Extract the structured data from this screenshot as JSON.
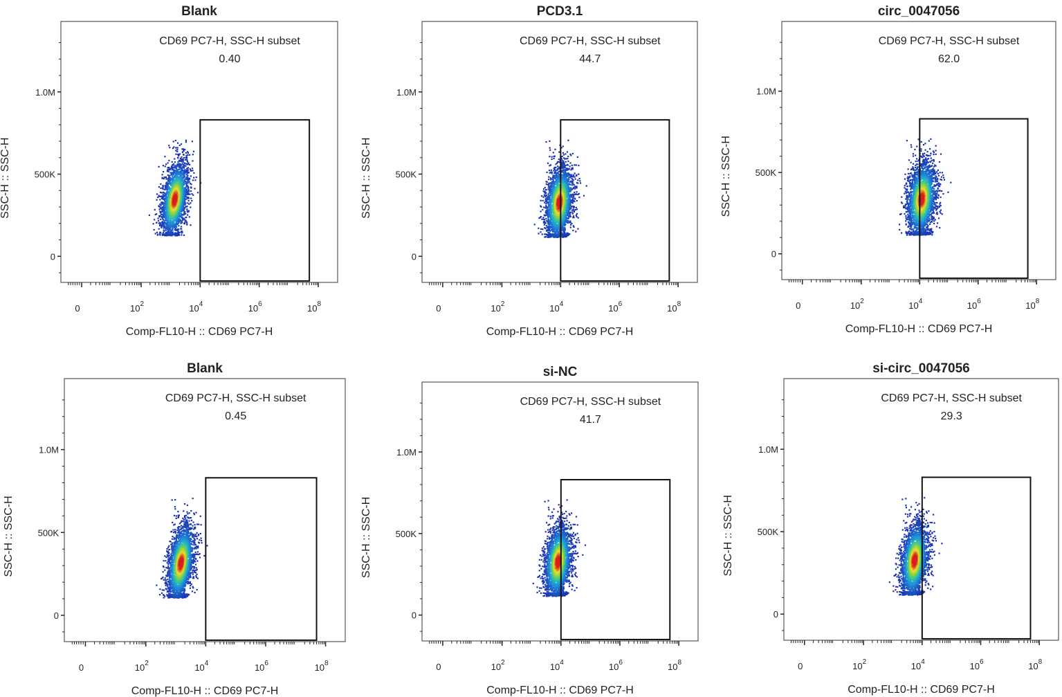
{
  "colors": {
    "density_low": "#1a2fb0",
    "density_mid": "#29c3c9",
    "density_high": "#e8e030",
    "density_peak": "#d81e1e",
    "axis": "#222222",
    "gate": "#111111"
  },
  "chart_data": [
    {
      "type": "scatter",
      "title": "Blank",
      "xlabel": "Comp-FL10-H :: CD69 PC7-H",
      "ylabel": "SSC-H :: SSC-H",
      "x_scale": "log",
      "x_ticks": [
        {
          "value": 0,
          "label": "0"
        },
        {
          "value": 100,
          "label": "10",
          "exp": "2"
        },
        {
          "value": 10000,
          "label": "10",
          "exp": "4"
        },
        {
          "value": 1000000,
          "label": "10",
          "exp": "6"
        },
        {
          "value": 100000000,
          "label": "10",
          "exp": "8"
        }
      ],
      "y_ticks": [
        {
          "value": 0,
          "label": "0"
        },
        {
          "value": 500000,
          "label": "500K"
        },
        {
          "value": 1000000,
          "label": "1.0M"
        }
      ],
      "gate": {
        "name": "CD69 PC7-H, SSC-H subset",
        "percent": "0.40",
        "x_range": [
          10000,
          50000000
        ],
        "y_range": [
          -150000,
          830000
        ]
      },
      "population": {
        "x_center": 1300,
        "x_spread_decades": 0.55,
        "y_center": 350000,
        "y_range": [
          130000,
          710000
        ],
        "skew": 0.45
      }
    },
    {
      "type": "scatter",
      "title": "PCD3.1",
      "xlabel": "Comp-FL10-H :: CD69 PC7-H",
      "ylabel": "SSC-H :: SSC-H",
      "x_scale": "log",
      "x_ticks": [
        {
          "value": 0,
          "label": "0"
        },
        {
          "value": 100,
          "label": "10",
          "exp": "2"
        },
        {
          "value": 10000,
          "label": "10",
          "exp": "4"
        },
        {
          "value": 1000000,
          "label": "10",
          "exp": "6"
        },
        {
          "value": 100000000,
          "label": "10",
          "exp": "8"
        }
      ],
      "y_ticks": [
        {
          "value": 0,
          "label": "0"
        },
        {
          "value": 500000,
          "label": "500K"
        },
        {
          "value": 1000000,
          "label": "1.0M"
        }
      ],
      "gate": {
        "name": "CD69 PC7-H, SSC-H subset",
        "percent": "44.7",
        "x_range": [
          10000,
          50000000
        ],
        "y_range": [
          -150000,
          830000
        ]
      },
      "population": {
        "x_center": 8500,
        "x_spread_decades": 0.6,
        "y_center": 330000,
        "y_range": [
          120000,
          710000
        ],
        "skew": 0.3
      }
    },
    {
      "type": "scatter",
      "title": "circ_0047056",
      "xlabel": "Comp-FL10-H :: CD69 PC7-H",
      "ylabel": "SSC-H :: SSC-H",
      "x_scale": "log",
      "x_ticks": [
        {
          "value": 0,
          "label": "0"
        },
        {
          "value": 100,
          "label": "10",
          "exp": "2"
        },
        {
          "value": 10000,
          "label": "10",
          "exp": "4"
        },
        {
          "value": 1000000,
          "label": "10",
          "exp": "6"
        },
        {
          "value": 100000000,
          "label": "10",
          "exp": "8"
        }
      ],
      "y_ticks": [
        {
          "value": 0,
          "label": "0"
        },
        {
          "value": 500000,
          "label": "500K"
        },
        {
          "value": 1000000,
          "label": "1.0M"
        }
      ],
      "gate": {
        "name": "CD69 PC7-H, SSC-H subset",
        "percent": "62.0",
        "x_range": [
          10000,
          50000000
        ],
        "y_range": [
          -150000,
          830000
        ]
      },
      "population": {
        "x_center": 11000,
        "x_spread_decades": 0.65,
        "y_center": 340000,
        "y_range": [
          120000,
          710000
        ],
        "skew": 0.3
      }
    },
    {
      "type": "scatter",
      "title": "Blank",
      "xlabel": "Comp-FL10-H :: CD69 PC7-H",
      "ylabel": "SSC-H :: SSC-H",
      "x_scale": "log",
      "x_ticks": [
        {
          "value": 0,
          "label": "0"
        },
        {
          "value": 100,
          "label": "10",
          "exp": "2"
        },
        {
          "value": 10000,
          "label": "10",
          "exp": "4"
        },
        {
          "value": 1000000,
          "label": "10",
          "exp": "6"
        },
        {
          "value": 100000000,
          "label": "10",
          "exp": "8"
        }
      ],
      "y_ticks": [
        {
          "value": 0,
          "label": "0"
        },
        {
          "value": 500000,
          "label": "500K"
        },
        {
          "value": 1000000,
          "label": "1.0M"
        }
      ],
      "gate": {
        "name": "CD69 PC7-H, SSC-H subset",
        "percent": "0.45",
        "x_range": [
          10000,
          50000000
        ],
        "y_range": [
          -150000,
          830000
        ]
      },
      "population": {
        "x_center": 1400,
        "x_spread_decades": 0.55,
        "y_center": 320000,
        "y_range": [
          110000,
          710000
        ],
        "skew": 0.45
      }
    },
    {
      "type": "scatter",
      "title": "si-NC",
      "xlabel": "Comp-FL10-H :: CD69 PC7-H",
      "ylabel": "SSC-H :: SSC-H",
      "x_scale": "log",
      "x_ticks": [
        {
          "value": 0,
          "label": "0"
        },
        {
          "value": 100,
          "label": "10",
          "exp": "2"
        },
        {
          "value": 10000,
          "label": "10",
          "exp": "4"
        },
        {
          "value": 1000000,
          "label": "10",
          "exp": "6"
        },
        {
          "value": 100000000,
          "label": "10",
          "exp": "8"
        }
      ],
      "y_ticks": [
        {
          "value": 0,
          "label": "0"
        },
        {
          "value": 500000,
          "label": "500K"
        },
        {
          "value": 1000000,
          "label": "1.0M"
        }
      ],
      "gate": {
        "name": "CD69 PC7-H, SSC-H subset",
        "percent": "41.7",
        "x_range": [
          10000,
          50000000
        ],
        "y_range": [
          -150000,
          830000
        ]
      },
      "population": {
        "x_center": 7500,
        "x_spread_decades": 0.6,
        "y_center": 330000,
        "y_range": [
          120000,
          710000
        ],
        "skew": 0.3
      }
    },
    {
      "type": "scatter",
      "title": "si-circ_0047056",
      "xlabel": "Comp-FL10-H :: CD69 PC7-H",
      "ylabel": "SSC-H :: SSC-H",
      "x_scale": "log",
      "x_ticks": [
        {
          "value": 0,
          "label": "0"
        },
        {
          "value": 100,
          "label": "10",
          "exp": "2"
        },
        {
          "value": 10000,
          "label": "10",
          "exp": "4"
        },
        {
          "value": 1000000,
          "label": "10",
          "exp": "6"
        },
        {
          "value": 100000000,
          "label": "10",
          "exp": "8"
        }
      ],
      "y_ticks": [
        {
          "value": 0,
          "label": "0"
        },
        {
          "value": 500000,
          "label": "500K"
        },
        {
          "value": 1000000,
          "label": "1.0M"
        }
      ],
      "gate": {
        "name": "CD69 PC7-H, SSC-H subset",
        "percent": "29.3",
        "x_range": [
          10000,
          50000000
        ],
        "y_range": [
          -150000,
          830000
        ]
      },
      "population": {
        "x_center": 5200,
        "x_spread_decades": 0.6,
        "y_center": 330000,
        "y_range": [
          120000,
          710000
        ],
        "skew": 0.35
      }
    }
  ]
}
